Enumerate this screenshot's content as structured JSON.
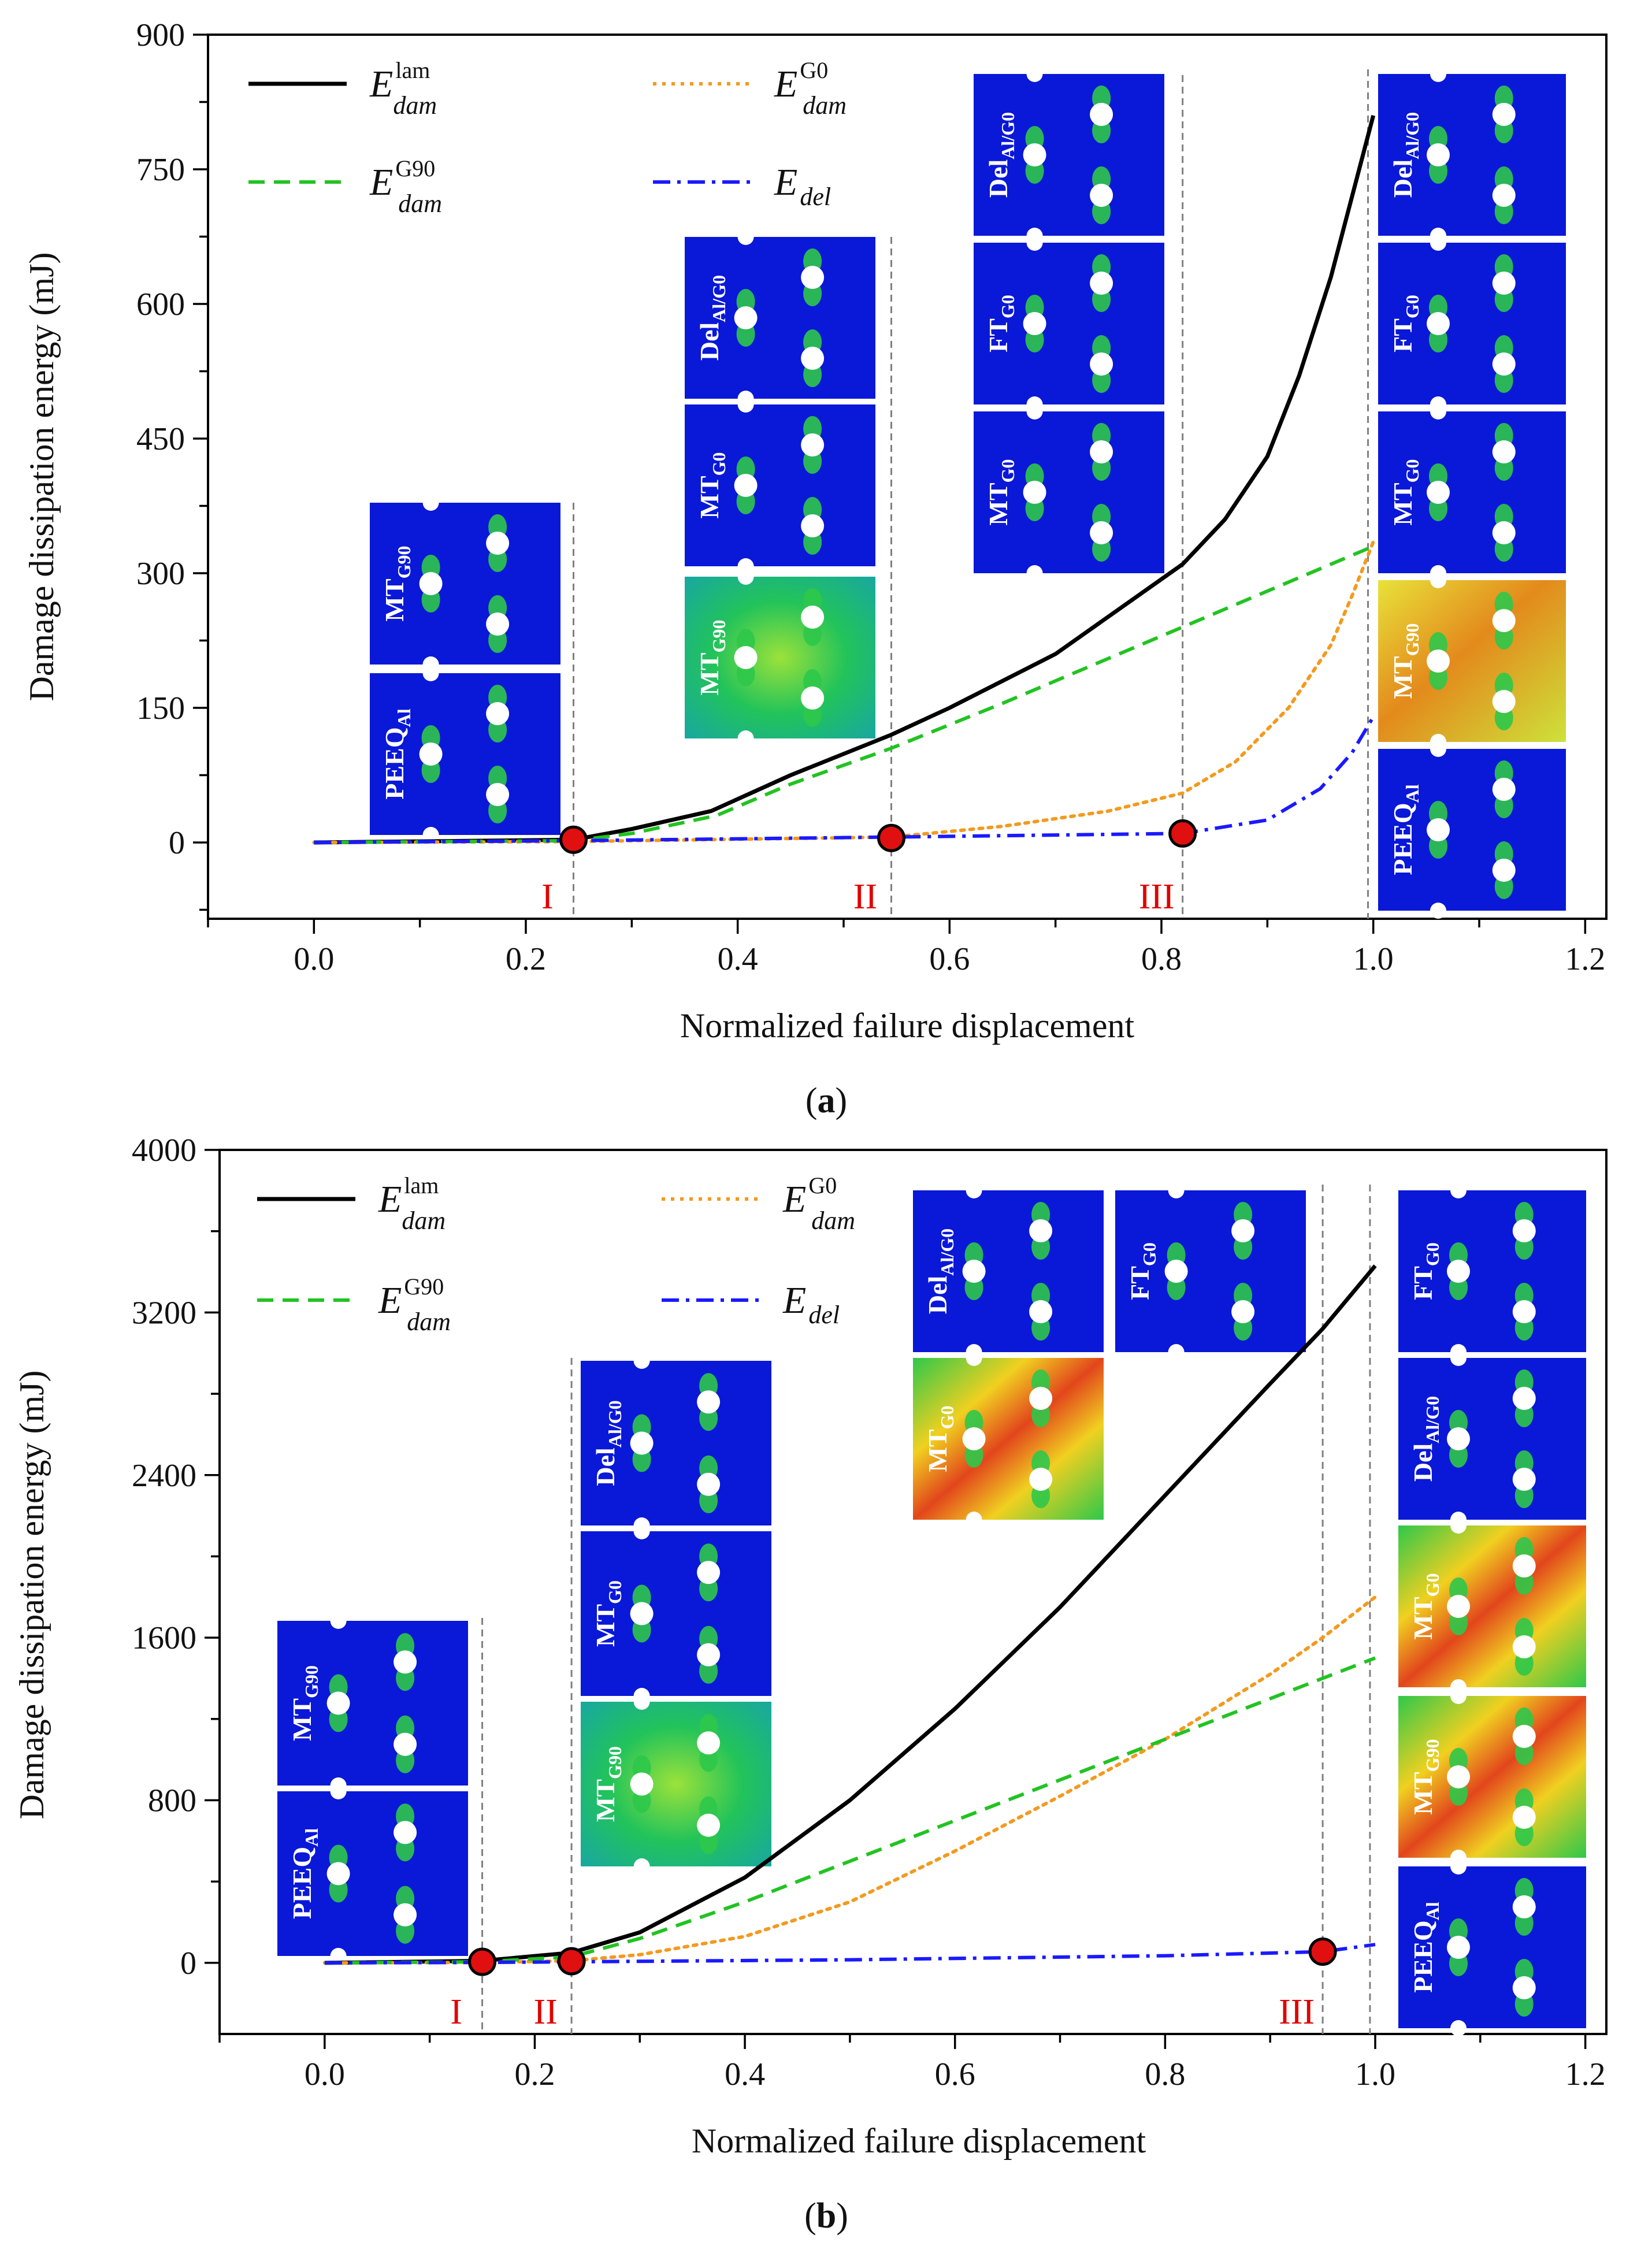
{
  "chart_data": [
    {
      "type": "line",
      "caption_letter": "a",
      "xlabel": "Normalized failure displacement",
      "ylabel": "Damage dissipation energy (mJ)",
      "xlim": [
        -0.1,
        1.22
      ],
      "ylim": [
        -85,
        900
      ],
      "xticks": [
        0.0,
        0.2,
        0.4,
        0.6,
        0.8,
        1.0,
        1.2
      ],
      "xtick_labels": [
        "0.0",
        "0.2",
        "0.4",
        "0.6",
        "0.8",
        "1.0",
        "1.2"
      ],
      "yticks": [
        0,
        150,
        300,
        450,
        600,
        750,
        900
      ],
      "ytick_labels": [
        "0",
        "150",
        "300",
        "450",
        "600",
        "750",
        "900"
      ],
      "grid": false,
      "legend_position": "top-left",
      "series": [
        {
          "id": "lam",
          "legend_base": "E",
          "legend_sup": "lam",
          "legend_sub": "dam",
          "color": "#000000",
          "dash": "solid",
          "x": [
            0.0,
            0.245,
            0.3,
            0.375,
            0.45,
            0.545,
            0.6,
            0.7,
            0.82,
            0.86,
            0.9,
            0.93,
            0.96,
            0.98,
            1.0
          ],
          "y": [
            0,
            3,
            15,
            35,
            75,
            120,
            150,
            210,
            310,
            360,
            430,
            520,
            630,
            720,
            810
          ]
        },
        {
          "id": "g0",
          "legend_base": "E",
          "legend_sup": "G0",
          "legend_sub": "dam",
          "color": "#f39a1e",
          "dash": "dot",
          "x": [
            0.0,
            0.245,
            0.545,
            0.65,
            0.75,
            0.82,
            0.87,
            0.92,
            0.96,
            0.98,
            1.0
          ],
          "y": [
            0,
            1,
            6,
            18,
            35,
            55,
            90,
            150,
            220,
            275,
            335
          ]
        },
        {
          "id": "g90",
          "legend_base": "E",
          "legend_sup": "G90",
          "legend_sub": "dam",
          "color": "#22c322",
          "dash": "dash",
          "x": [
            0.0,
            0.245,
            0.3,
            0.38,
            0.45,
            0.545,
            0.65,
            0.75,
            0.82,
            0.9,
            1.0
          ],
          "y": [
            0,
            2,
            10,
            30,
            65,
            105,
            155,
            205,
            240,
            280,
            330
          ]
        },
        {
          "id": "del",
          "legend_base": "E",
          "legend_sup": "",
          "legend_sub": "del",
          "color": "#1a1aff",
          "dash": "dashdot",
          "x": [
            0.0,
            0.245,
            0.545,
            0.82,
            0.9,
            0.95,
            0.98,
            1.0
          ],
          "y": [
            0,
            2,
            6,
            10,
            25,
            60,
            100,
            140
          ]
        }
      ],
      "stages": [
        {
          "label": "I",
          "x": 0.245,
          "y": 3
        },
        {
          "label": "II",
          "x": 0.545,
          "y": 5
        },
        {
          "label": "III",
          "x": 0.82,
          "y": 10
        }
      ],
      "stage_lines_x": [
        0.245,
        0.545,
        0.82,
        0.995
      ],
      "insets": [
        {
          "label_main": "MT",
          "label_sub": "G90",
          "theme": "blue"
        },
        {
          "label_main": "PEEQ",
          "label_sub": "Al",
          "theme": "blue"
        },
        {
          "label_main": "Del",
          "label_sub": "Al/G0",
          "theme": "blue"
        },
        {
          "label_main": "MT",
          "label_sub": "G0",
          "theme": "blue"
        },
        {
          "label_main": "MT",
          "label_sub": "G90",
          "theme": "green"
        },
        {
          "label_main": "Del",
          "label_sub": "Al/G0",
          "theme": "blue"
        },
        {
          "label_main": "FT",
          "label_sub": "G0",
          "theme": "blue"
        },
        {
          "label_main": "MT",
          "label_sub": "G0",
          "theme": "blue"
        },
        {
          "label_main": "Del",
          "label_sub": "Al/G0",
          "theme": "blue"
        },
        {
          "label_main": "FT",
          "label_sub": "G0",
          "theme": "blue"
        },
        {
          "label_main": "MT",
          "label_sub": "G0",
          "theme": "blue"
        },
        {
          "label_main": "MT",
          "label_sub": "G90",
          "theme": "yellow"
        },
        {
          "label_main": "PEEQ",
          "label_sub": "Al",
          "theme": "blue"
        }
      ]
    },
    {
      "type": "line",
      "caption_letter": "b",
      "xlabel": "Normalized failure displacement",
      "ylabel": "Damage dissipation energy (mJ)",
      "xlim": [
        -0.1,
        1.22
      ],
      "ylim": [
        -350,
        4000
      ],
      "xticks": [
        0.0,
        0.2,
        0.4,
        0.6,
        0.8,
        1.0,
        1.2
      ],
      "xtick_labels": [
        "0.0",
        "0.2",
        "0.4",
        "0.6",
        "0.8",
        "1.0",
        "1.2"
      ],
      "yticks": [
        0,
        800,
        1600,
        2400,
        3200,
        4000
      ],
      "ytick_labels": [
        "0",
        "800",
        "1600",
        "2400",
        "3200",
        "4000"
      ],
      "grid": false,
      "legend_position": "top-left",
      "series": [
        {
          "id": "lam",
          "legend_base": "E",
          "legend_sup": "lam",
          "legend_sub": "dam",
          "color": "#000000",
          "dash": "solid",
          "x": [
            0.0,
            0.15,
            0.235,
            0.3,
            0.4,
            0.5,
            0.6,
            0.7,
            0.8,
            0.9,
            0.95,
            1.0
          ],
          "y": [
            0,
            10,
            50,
            150,
            420,
            800,
            1250,
            1750,
            2300,
            2850,
            3120,
            3430
          ]
        },
        {
          "id": "g0",
          "legend_base": "E",
          "legend_sup": "G0",
          "legend_sub": "dam",
          "color": "#f39a1e",
          "dash": "dot",
          "x": [
            0.0,
            0.15,
            0.235,
            0.3,
            0.4,
            0.5,
            0.6,
            0.7,
            0.8,
            0.9,
            0.95,
            1.0
          ],
          "y": [
            0,
            2,
            10,
            40,
            130,
            300,
            550,
            820,
            1100,
            1420,
            1600,
            1800
          ]
        },
        {
          "id": "g90",
          "legend_base": "E",
          "legend_sup": "G90",
          "legend_sub": "dam",
          "color": "#22c322",
          "dash": "dash",
          "x": [
            0.0,
            0.15,
            0.235,
            0.3,
            0.4,
            0.5,
            0.6,
            0.7,
            0.8,
            0.9,
            0.95,
            1.0
          ],
          "y": [
            0,
            5,
            30,
            120,
            300,
            500,
            700,
            900,
            1100,
            1300,
            1400,
            1500
          ]
        },
        {
          "id": "del",
          "legend_base": "E",
          "legend_sup": "",
          "legend_sub": "del",
          "color": "#1a1aff",
          "dash": "dashdot",
          "x": [
            0.0,
            0.15,
            0.235,
            0.5,
            0.8,
            0.95,
            1.0
          ],
          "y": [
            0,
            2,
            5,
            15,
            35,
            55,
            90
          ]
        }
      ],
      "stages": [
        {
          "label": "I",
          "x": 0.15,
          "y": 5
        },
        {
          "label": "II",
          "x": 0.235,
          "y": 8
        },
        {
          "label": "III",
          "x": 0.95,
          "y": 55
        }
      ],
      "stage_lines_x": [
        0.15,
        0.235,
        0.95,
        0.995
      ],
      "insets": [
        {
          "label_main": "MT",
          "label_sub": "G90",
          "theme": "blue"
        },
        {
          "label_main": "PEEQ",
          "label_sub": "Al",
          "theme": "blue"
        },
        {
          "label_main": "Del",
          "label_sub": "Al/G0",
          "theme": "blue"
        },
        {
          "label_main": "MT",
          "label_sub": "G0",
          "theme": "blue"
        },
        {
          "label_main": "MT",
          "label_sub": "G90",
          "theme": "green"
        },
        {
          "label_main": "Del",
          "label_sub": "Al/G0",
          "theme": "blue"
        },
        {
          "label_main": "FT",
          "label_sub": "G0",
          "theme": "blue"
        },
        {
          "label_main": "MT",
          "label_sub": "G0",
          "theme": "rainbow"
        },
        {
          "label_main": "FT",
          "label_sub": "G0",
          "theme": "blue"
        },
        {
          "label_main": "Del",
          "label_sub": "Al/G0",
          "theme": "blue"
        },
        {
          "label_main": "MT",
          "label_sub": "G0",
          "theme": "rainbow"
        },
        {
          "label_main": "MT",
          "label_sub": "G90",
          "theme": "rainbow"
        },
        {
          "label_main": "PEEQ",
          "label_sub": "Al",
          "theme": "blue"
        }
      ]
    }
  ]
}
